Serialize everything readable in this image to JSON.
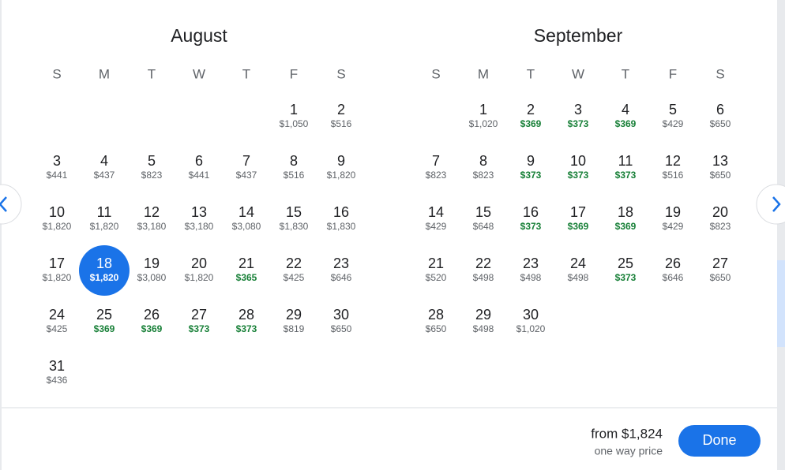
{
  "months": [
    {
      "title": "August",
      "weekdays": [
        "S",
        "M",
        "T",
        "W",
        "T",
        "F",
        "S"
      ],
      "weeks": [
        [
          null,
          null,
          null,
          null,
          null,
          {
            "day": 1,
            "price": "$1,050"
          },
          {
            "day": 2,
            "price": "$516"
          }
        ],
        [
          {
            "day": 3,
            "price": "$441"
          },
          {
            "day": 4,
            "price": "$437"
          },
          {
            "day": 5,
            "price": "$823"
          },
          {
            "day": 6,
            "price": "$441"
          },
          {
            "day": 7,
            "price": "$437"
          },
          {
            "day": 8,
            "price": "$516"
          },
          {
            "day": 9,
            "price": "$1,820"
          }
        ],
        [
          {
            "day": 10,
            "price": "$1,820"
          },
          {
            "day": 11,
            "price": "$1,820"
          },
          {
            "day": 12,
            "price": "$3,180"
          },
          {
            "day": 13,
            "price": "$3,180"
          },
          {
            "day": 14,
            "price": "$3,080"
          },
          {
            "day": 15,
            "price": "$1,830"
          },
          {
            "day": 16,
            "price": "$1,830"
          }
        ],
        [
          {
            "day": 17,
            "price": "$1,820"
          },
          {
            "day": 18,
            "price": "$1,820",
            "selected": true
          },
          {
            "day": 19,
            "price": "$3,080"
          },
          {
            "day": 20,
            "price": "$1,820"
          },
          {
            "day": 21,
            "price": "$365",
            "price_color": "#188038"
          },
          {
            "day": 22,
            "price": "$425"
          },
          {
            "day": 23,
            "price": "$646"
          }
        ],
        [
          {
            "day": 24,
            "price": "$425"
          },
          {
            "day": 25,
            "price": "$369",
            "price_color": "#188038"
          },
          {
            "day": 26,
            "price": "$369",
            "price_color": "#188038"
          },
          {
            "day": 27,
            "price": "$373",
            "price_color": "#188038"
          },
          {
            "day": 28,
            "price": "$373",
            "price_color": "#188038"
          },
          {
            "day": 29,
            "price": "$819"
          },
          {
            "day": 30,
            "price": "$650"
          }
        ],
        [
          {
            "day": 31,
            "price": "$436"
          },
          null,
          null,
          null,
          null,
          null,
          null
        ]
      ]
    },
    {
      "title": "September",
      "weekdays": [
        "S",
        "M",
        "T",
        "W",
        "T",
        "F",
        "S"
      ],
      "weeks": [
        [
          null,
          {
            "day": 1,
            "price": "$1,020"
          },
          {
            "day": 2,
            "price": "$369",
            "price_color": "#188038"
          },
          {
            "day": 3,
            "price": "$373",
            "price_color": "#188038"
          },
          {
            "day": 4,
            "price": "$369",
            "price_color": "#188038"
          },
          {
            "day": 5,
            "price": "$429"
          },
          {
            "day": 6,
            "price": "$650"
          }
        ],
        [
          {
            "day": 7,
            "price": "$823"
          },
          {
            "day": 8,
            "price": "$823"
          },
          {
            "day": 9,
            "price": "$373",
            "price_color": "#188038"
          },
          {
            "day": 10,
            "price": "$373",
            "price_color": "#188038"
          },
          {
            "day": 11,
            "price": "$373",
            "price_color": "#188038"
          },
          {
            "day": 12,
            "price": "$516"
          },
          {
            "day": 13,
            "price": "$650"
          }
        ],
        [
          {
            "day": 14,
            "price": "$429"
          },
          {
            "day": 15,
            "price": "$648"
          },
          {
            "day": 16,
            "price": "$373",
            "price_color": "#188038"
          },
          {
            "day": 17,
            "price": "$369",
            "price_color": "#188038"
          },
          {
            "day": 18,
            "price": "$369",
            "price_color": "#188038"
          },
          {
            "day": 19,
            "price": "$429"
          },
          {
            "day": 20,
            "price": "$823"
          }
        ],
        [
          {
            "day": 21,
            "price": "$520"
          },
          {
            "day": 22,
            "price": "$498"
          },
          {
            "day": 23,
            "price": "$498"
          },
          {
            "day": 24,
            "price": "$498"
          },
          {
            "day": 25,
            "price": "$373",
            "price_color": "#188038"
          },
          {
            "day": 26,
            "price": "$646"
          },
          {
            "day": 27,
            "price": "$650"
          }
        ],
        [
          {
            "day": 28,
            "price": "$650"
          },
          {
            "day": 29,
            "price": "$498"
          },
          {
            "day": 30,
            "price": "$1,020"
          },
          null,
          null,
          null,
          null
        ]
      ]
    }
  ],
  "footer": {
    "price": "from $1,824",
    "note": "one way price",
    "button": "Done"
  }
}
